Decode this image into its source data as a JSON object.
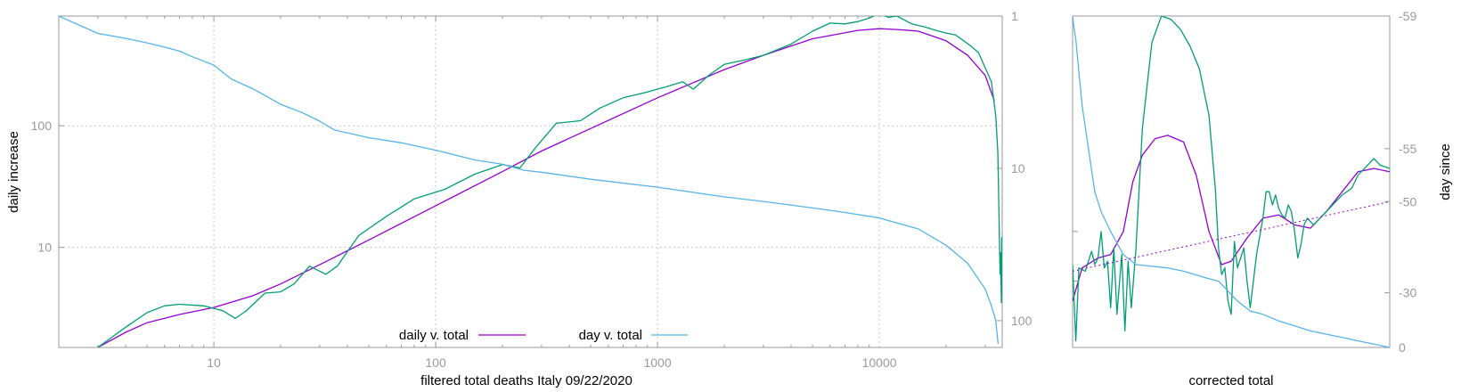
{
  "chart_data": [
    {
      "type": "line",
      "title": "",
      "xlabel": "filtered total deaths Italy 09/22/2020",
      "ylabel": "daily increase",
      "xscale": "log",
      "yscale": "log",
      "xlim": [
        2,
        35800
      ],
      "ylim": [
        1.5,
        800
      ],
      "y2lim": [
        1,
        150
      ],
      "y2scale": "log-reversed",
      "x_ticks": [
        10,
        100,
        1000,
        10000
      ],
      "x_tick_labels": [
        "10",
        "100",
        "1000",
        "10000"
      ],
      "y_ticks": [
        10,
        100
      ],
      "y_tick_labels": [
        "10",
        "100"
      ],
      "y2_ticks": [
        1,
        10,
        100
      ],
      "y2_tick_labels": [
        "1",
        "10",
        "100"
      ],
      "grid": true,
      "legend_position": "bottom-center",
      "legend": [
        {
          "label": "daily v. total",
          "color": "#9400d3"
        },
        {
          "label": "day v. total",
          "color": "#56b4e9"
        }
      ],
      "series": [
        {
          "name": "daily v. total",
          "color": "#9400d3",
          "axis": "y",
          "points": [
            [
              3,
              1.5
            ],
            [
              4,
              2.0
            ],
            [
              5,
              2.4
            ],
            [
              7,
              2.8
            ],
            [
              10,
              3.2
            ],
            [
              15,
              4.0
            ],
            [
              20,
              5.0
            ],
            [
              30,
              7.2
            ],
            [
              50,
              11.5
            ],
            [
              100,
              22
            ],
            [
              200,
              42
            ],
            [
              300,
              62
            ],
            [
              500,
              95
            ],
            [
              1000,
              170
            ],
            [
              2000,
              290
            ],
            [
              3000,
              380
            ],
            [
              5000,
              520
            ],
            [
              8000,
              610
            ],
            [
              10000,
              630
            ],
            [
              12000,
              620
            ],
            [
              15000,
              600
            ],
            [
              20000,
              500
            ],
            [
              25000,
              380
            ],
            [
              30000,
              260
            ],
            [
              33000,
              160
            ]
          ]
        },
        {
          "name": "",
          "color": "#009e73",
          "axis": "y",
          "points": [
            [
              3,
              1.5
            ],
            [
              4,
              2.2
            ],
            [
              5,
              2.9
            ],
            [
              6,
              3.3
            ],
            [
              7,
              3.4
            ],
            [
              9,
              3.3
            ],
            [
              11,
              3.0
            ],
            [
              12.5,
              2.6
            ],
            [
              14,
              3.0
            ],
            [
              17,
              4.2
            ],
            [
              20,
              4.3
            ],
            [
              23,
              5.0
            ],
            [
              27,
              7.0
            ],
            [
              32,
              6.0
            ],
            [
              36,
              7.0
            ],
            [
              45,
              12.5
            ],
            [
              60,
              18
            ],
            [
              80,
              25
            ],
            [
              110,
              30
            ],
            [
              150,
              40
            ],
            [
              200,
              48
            ],
            [
              240,
              45
            ],
            [
              280,
              65
            ],
            [
              350,
              105
            ],
            [
              450,
              110
            ],
            [
              550,
              140
            ],
            [
              700,
              170
            ],
            [
              900,
              190
            ],
            [
              1100,
              210
            ],
            [
              1300,
              230
            ],
            [
              1450,
              200
            ],
            [
              1700,
              260
            ],
            [
              2000,
              320
            ],
            [
              2500,
              350
            ],
            [
              3000,
              380
            ],
            [
              4000,
              470
            ],
            [
              5000,
              600
            ],
            [
              6000,
              700
            ],
            [
              7000,
              690
            ],
            [
              8000,
              720
            ],
            [
              9000,
              770
            ],
            [
              10000,
              840
            ],
            [
              11000,
              780
            ],
            [
              12000,
              800
            ],
            [
              14000,
              690
            ],
            [
              16000,
              650
            ],
            [
              18000,
              610
            ],
            [
              20000,
              580
            ],
            [
              22000,
              560
            ],
            [
              24000,
              500
            ],
            [
              26000,
              450
            ],
            [
              28000,
              400
            ],
            [
              30000,
              300
            ],
            [
              32000,
              230
            ],
            [
              33500,
              120
            ],
            [
              34200,
              60
            ],
            [
              34600,
              20
            ],
            [
              35000,
              6
            ],
            [
              35200,
              9
            ],
            [
              35500,
              3.5
            ],
            [
              35600,
              12
            ],
            [
              35700,
              4
            ]
          ]
        },
        {
          "name": "day v. total",
          "color": "#56b4e9",
          "axis": "y2",
          "points": [
            [
              2,
              1.0
            ],
            [
              3,
              1.3
            ],
            [
              4,
              1.4
            ],
            [
              5,
              1.5
            ],
            [
              6,
              1.6
            ],
            [
              7,
              1.7
            ],
            [
              8,
              1.85
            ],
            [
              10,
              2.1
            ],
            [
              12,
              2.6
            ],
            [
              15,
              3.0
            ],
            [
              20,
              3.8
            ],
            [
              25,
              4.3
            ],
            [
              30,
              4.9
            ],
            [
              35,
              5.6
            ],
            [
              50,
              6.3
            ],
            [
              70,
              6.8
            ],
            [
              100,
              7.6
            ],
            [
              150,
              8.8
            ],
            [
              200,
              9.4
            ],
            [
              250,
              10.3
            ],
            [
              300,
              10.6
            ],
            [
              500,
              11.8
            ],
            [
              1000,
              13.3
            ],
            [
              2000,
              15.4
            ],
            [
              3000,
              16.5
            ],
            [
              5000,
              18.2
            ],
            [
              7000,
              19.5
            ],
            [
              10000,
              21.2
            ],
            [
              15000,
              25
            ],
            [
              20000,
              32
            ],
            [
              25000,
              42
            ],
            [
              30000,
              62
            ],
            [
              32000,
              80
            ],
            [
              33500,
              100
            ],
            [
              34000,
              125
            ],
            [
              34300,
              142
            ]
          ]
        }
      ]
    },
    {
      "type": "line",
      "title": "",
      "xlabel": "corrected total",
      "ylabel": "day since",
      "y2_ticks": [
        0,
        -30,
        -50,
        -55,
        -59
      ],
      "y2_tick_labels": [
        "0",
        "-30",
        "-50",
        "-55",
        "-59"
      ],
      "grid": false,
      "legend_position": "none",
      "series": [
        {
          "name": "",
          "color": "#9400d3",
          "axis": "y",
          "points": [
            [
              0,
              0.14
            ],
            [
              0.03,
              0.24
            ],
            [
              0.08,
              0.27
            ],
            [
              0.12,
              0.28
            ],
            [
              0.16,
              0.35
            ],
            [
              0.19,
              0.5
            ],
            [
              0.22,
              0.58
            ],
            [
              0.26,
              0.63
            ],
            [
              0.3,
              0.64
            ],
            [
              0.35,
              0.62
            ],
            [
              0.39,
              0.52
            ],
            [
              0.43,
              0.35
            ],
            [
              0.47,
              0.25
            ],
            [
              0.5,
              0.26
            ],
            [
              0.55,
              0.33
            ],
            [
              0.6,
              0.39
            ],
            [
              0.65,
              0.4
            ],
            [
              0.7,
              0.37
            ],
            [
              0.75,
              0.36
            ],
            [
              0.8,
              0.41
            ],
            [
              0.85,
              0.47
            ],
            [
              0.9,
              0.53
            ],
            [
              0.95,
              0.54
            ],
            [
              1.0,
              0.53
            ]
          ]
        },
        {
          "name": "",
          "color": "#009e73",
          "axis": "y",
          "points": [
            [
              0,
              0.25
            ],
            [
              0.01,
              0.02
            ],
            [
              0.02,
              0.24
            ],
            [
              0.04,
              0.23
            ],
            [
              0.06,
              0.29
            ],
            [
              0.07,
              0.25
            ],
            [
              0.08,
              0.27
            ],
            [
              0.09,
              0.35
            ],
            [
              0.1,
              0.24
            ],
            [
              0.11,
              0.26
            ],
            [
              0.12,
              0.12
            ],
            [
              0.13,
              0.3
            ],
            [
              0.14,
              0.1
            ],
            [
              0.155,
              0.28
            ],
            [
              0.165,
              0.05
            ],
            [
              0.175,
              0.26
            ],
            [
              0.185,
              0.12
            ],
            [
              0.2,
              0.3
            ],
            [
              0.22,
              0.66
            ],
            [
              0.25,
              0.92
            ],
            [
              0.28,
              1.0
            ],
            [
              0.31,
              0.99
            ],
            [
              0.34,
              0.96
            ],
            [
              0.37,
              0.91
            ],
            [
              0.4,
              0.84
            ],
            [
              0.43,
              0.7
            ],
            [
              0.45,
              0.48
            ],
            [
              0.46,
              0.3
            ],
            [
              0.47,
              0.22
            ],
            [
              0.48,
              0.24
            ],
            [
              0.49,
              0.14
            ],
            [
              0.5,
              0.1
            ],
            [
              0.51,
              0.32
            ],
            [
              0.52,
              0.24
            ],
            [
              0.54,
              0.3
            ],
            [
              0.55,
              0.2
            ],
            [
              0.56,
              0.12
            ],
            [
              0.58,
              0.28
            ],
            [
              0.6,
              0.39
            ],
            [
              0.61,
              0.47
            ],
            [
              0.62,
              0.47
            ],
            [
              0.63,
              0.43
            ],
            [
              0.64,
              0.46
            ],
            [
              0.65,
              0.42
            ],
            [
              0.66,
              0.4
            ],
            [
              0.67,
              0.39
            ],
            [
              0.68,
              0.43
            ],
            [
              0.69,
              0.41
            ],
            [
              0.7,
              0.35
            ],
            [
              0.71,
              0.27
            ],
            [
              0.72,
              0.31
            ],
            [
              0.73,
              0.37
            ],
            [
              0.74,
              0.39
            ],
            [
              0.76,
              0.37
            ],
            [
              0.8,
              0.41
            ],
            [
              0.85,
              0.46
            ],
            [
              0.88,
              0.48
            ],
            [
              0.9,
              0.52
            ],
            [
              0.93,
              0.55
            ],
            [
              0.95,
              0.57
            ],
            [
              0.97,
              0.55
            ],
            [
              1.0,
              0.54
            ]
          ]
        },
        {
          "name": "",
          "color": "#56b4e9",
          "axis": "y",
          "points": [
            [
              0,
              1.0
            ],
            [
              0.005,
              0.96
            ],
            [
              0.01,
              0.93
            ],
            [
              0.02,
              0.83
            ],
            [
              0.03,
              0.73
            ],
            [
              0.05,
              0.6
            ],
            [
              0.07,
              0.47
            ],
            [
              0.09,
              0.41
            ],
            [
              0.12,
              0.35
            ],
            [
              0.16,
              0.28
            ],
            [
              0.2,
              0.25
            ],
            [
              0.25,
              0.245
            ],
            [
              0.3,
              0.24
            ],
            [
              0.35,
              0.23
            ],
            [
              0.42,
              0.21
            ],
            [
              0.46,
              0.2
            ],
            [
              0.52,
              0.14
            ],
            [
              0.56,
              0.11
            ],
            [
              0.6,
              0.1
            ],
            [
              0.65,
              0.08
            ],
            [
              0.7,
              0.065
            ],
            [
              0.75,
              0.05
            ],
            [
              0.8,
              0.04
            ],
            [
              0.85,
              0.03
            ],
            [
              0.9,
              0.02
            ],
            [
              0.95,
              0.01
            ],
            [
              1.0,
              0.0
            ]
          ]
        },
        {
          "name": "",
          "color": "#9400d3",
          "style": "dotted",
          "axis": "y",
          "points": [
            [
              0,
              0.23
            ],
            [
              1.0,
              0.44
            ]
          ]
        }
      ]
    }
  ]
}
